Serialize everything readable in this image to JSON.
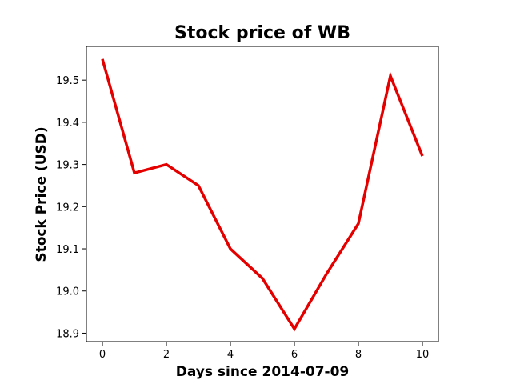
{
  "chart_data": {
    "type": "line",
    "title": "Stock price of WB",
    "xlabel": "Days since 2014-07-09",
    "ylabel": "Stock Price (USD)",
    "x": [
      0,
      1,
      2,
      3,
      4,
      5,
      6,
      7,
      8,
      9,
      10
    ],
    "series": [
      {
        "values": [
          19.55,
          19.28,
          19.3,
          19.25,
          19.1,
          19.03,
          18.91,
          19.04,
          19.16,
          19.51,
          19.32
        ],
        "color": "#e50000"
      }
    ],
    "xlim": [
      -0.5,
      10.5
    ],
    "ylim": [
      18.88,
      19.58
    ],
    "xticks": [
      "0",
      "2",
      "4",
      "6",
      "8",
      "10"
    ],
    "yticks": [
      "18.9",
      "19.0",
      "19.1",
      "19.2",
      "19.3",
      "19.4",
      "19.5"
    ],
    "grid": false
  }
}
